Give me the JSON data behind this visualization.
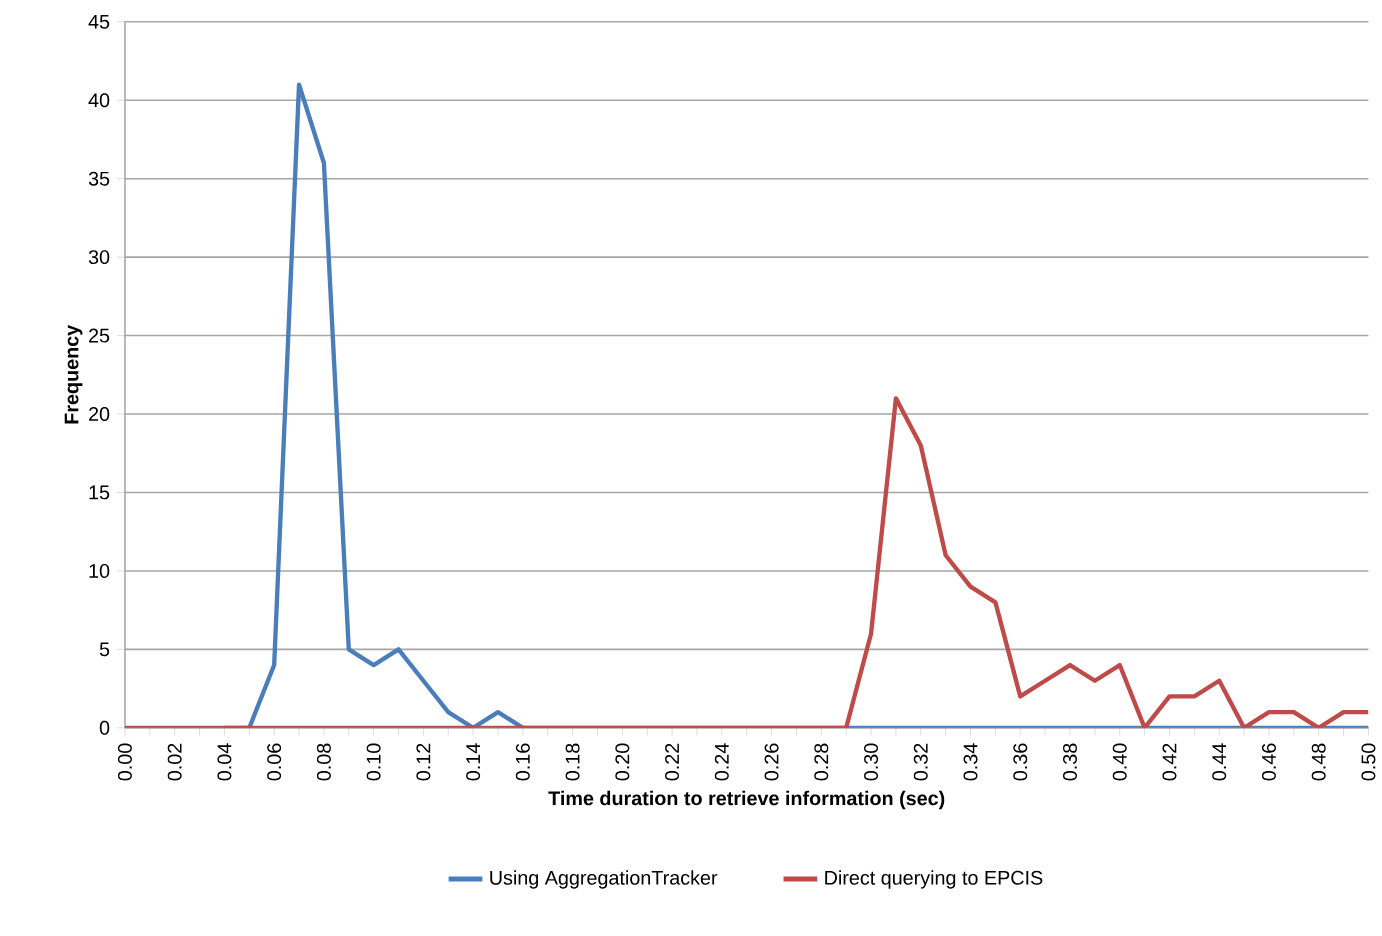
{
  "chart_data": {
    "type": "line",
    "xlabel": "Time duration to retrieve information (sec)",
    "ylabel": "Frequency",
    "categories": [
      "0.00",
      null,
      "0.02",
      null,
      "0.04",
      null,
      "0.06",
      null,
      "0.08",
      null,
      "0.10",
      null,
      "0.12",
      null,
      "0.14",
      null,
      "0.16",
      null,
      "0.18",
      null,
      "0.20",
      null,
      "0.22",
      null,
      "0.24",
      null,
      "0.26",
      null,
      "0.28",
      null,
      "0.30",
      null,
      "0.32",
      null,
      "0.34",
      null,
      "0.36",
      null,
      "0.38",
      null,
      "0.40",
      null,
      "0.42",
      null,
      "0.44",
      null,
      "0.46",
      null,
      "0.48",
      null,
      "0.50"
    ],
    "series": [
      {
        "name": "Using AggregationTracker",
        "color": "#4a7ebb",
        "values": [
          null,
          null,
          null,
          null,
          0,
          0,
          4,
          41,
          36,
          5,
          4,
          5,
          3,
          1,
          0,
          1,
          0,
          0,
          0,
          0,
          0,
          0,
          0,
          0,
          0,
          0,
          0,
          0,
          0,
          0,
          0,
          0,
          0,
          0,
          0,
          0,
          0,
          0,
          0,
          0,
          0,
          0,
          0,
          0,
          0,
          0,
          0,
          0,
          0,
          0,
          0
        ]
      },
      {
        "name": "Direct querying to EPCIS",
        "color": "#be4b48",
        "values": [
          0,
          0,
          0,
          0,
          0,
          0,
          0,
          0,
          0,
          0,
          0,
          0,
          0,
          0,
          0,
          0,
          0,
          0,
          0,
          0,
          0,
          0,
          0,
          0,
          0,
          0,
          0,
          0,
          0,
          0,
          6,
          21,
          18,
          11,
          9,
          8,
          2,
          3,
          4,
          3,
          4,
          0,
          2,
          2,
          3,
          0,
          1,
          1,
          0,
          1,
          1
        ]
      }
    ],
    "ylim": [
      0,
      45
    ],
    "yticks": [
      0,
      5,
      10,
      15,
      20,
      25,
      30,
      35,
      40,
      45
    ],
    "grid": "y",
    "legend": "bottom"
  }
}
